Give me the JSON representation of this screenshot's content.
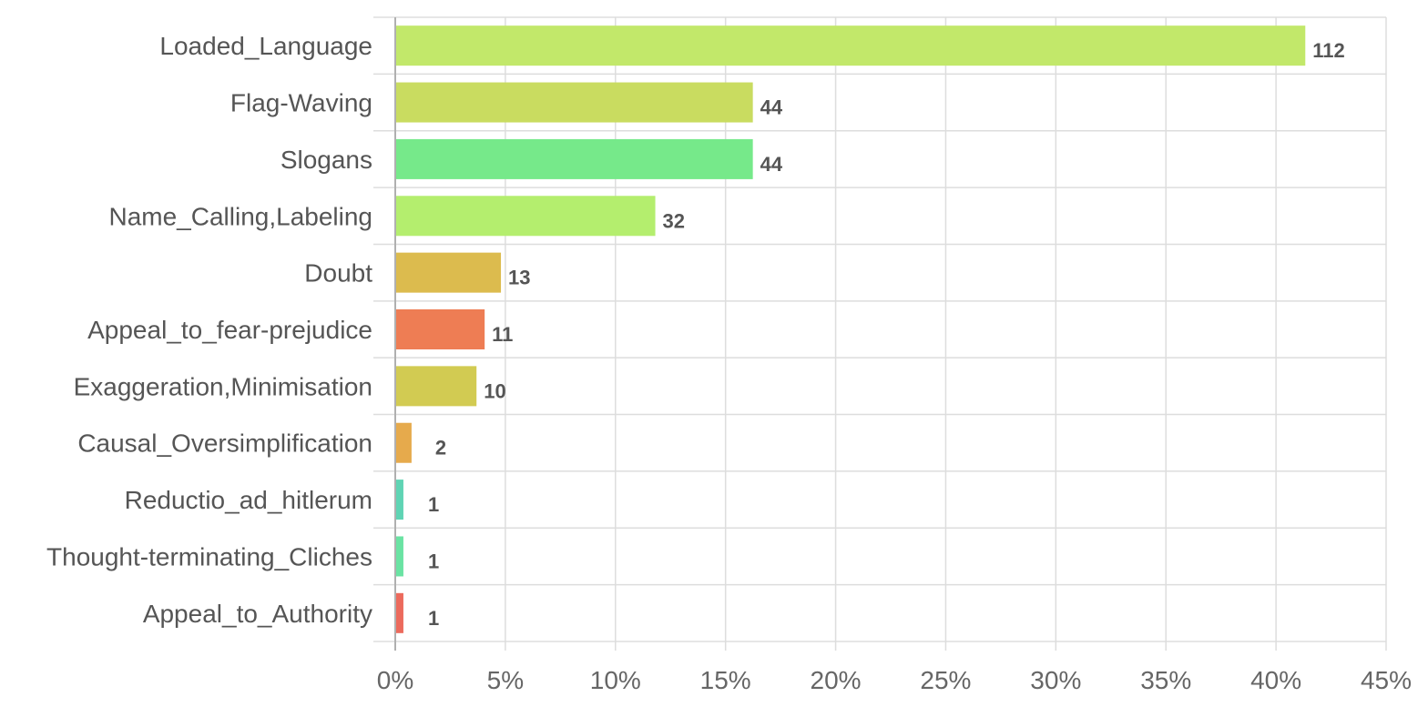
{
  "chart_data": {
    "type": "bar",
    "orientation": "horizontal",
    "categories": [
      "Loaded_Language",
      "Flag-Waving",
      "Slogans",
      "Name_Calling,Labeling",
      "Doubt",
      "Appeal_to_fear-prejudice",
      "Exaggeration,Minimisation",
      "Causal_Oversimplification",
      "Reductio_ad_hitlerum",
      "Thought-terminating_Cliches",
      "Appeal_to_Authority"
    ],
    "values": [
      112,
      44,
      44,
      32,
      13,
      11,
      10,
      2,
      1,
      1,
      1
    ],
    "percent_values": [
      41.33,
      16.24,
      16.24,
      11.81,
      4.8,
      4.06,
      3.69,
      0.74,
      0.37,
      0.37,
      0.37
    ],
    "data_labels": [
      "112",
      "44",
      "44",
      "32",
      "13",
      "11",
      "10",
      "2",
      "1",
      "1",
      "1"
    ],
    "colors": [
      "#c2e86a",
      "#c9dc60",
      "#76e98a",
      "#b4ee6e",
      "#dcbb4e",
      "#ee7d54",
      "#d2cb52",
      "#e6aa4c",
      "#5fd4b4",
      "#6ae3a3",
      "#ec6a5c"
    ],
    "x_ticks": [
      "0%",
      "5%",
      "10%",
      "15%",
      "20%",
      "25%",
      "30%",
      "35%",
      "40%",
      "45%"
    ],
    "xlim": [
      0,
      45
    ],
    "title": "",
    "xlabel": "",
    "ylabel": "",
    "grid": true,
    "legend": false
  }
}
